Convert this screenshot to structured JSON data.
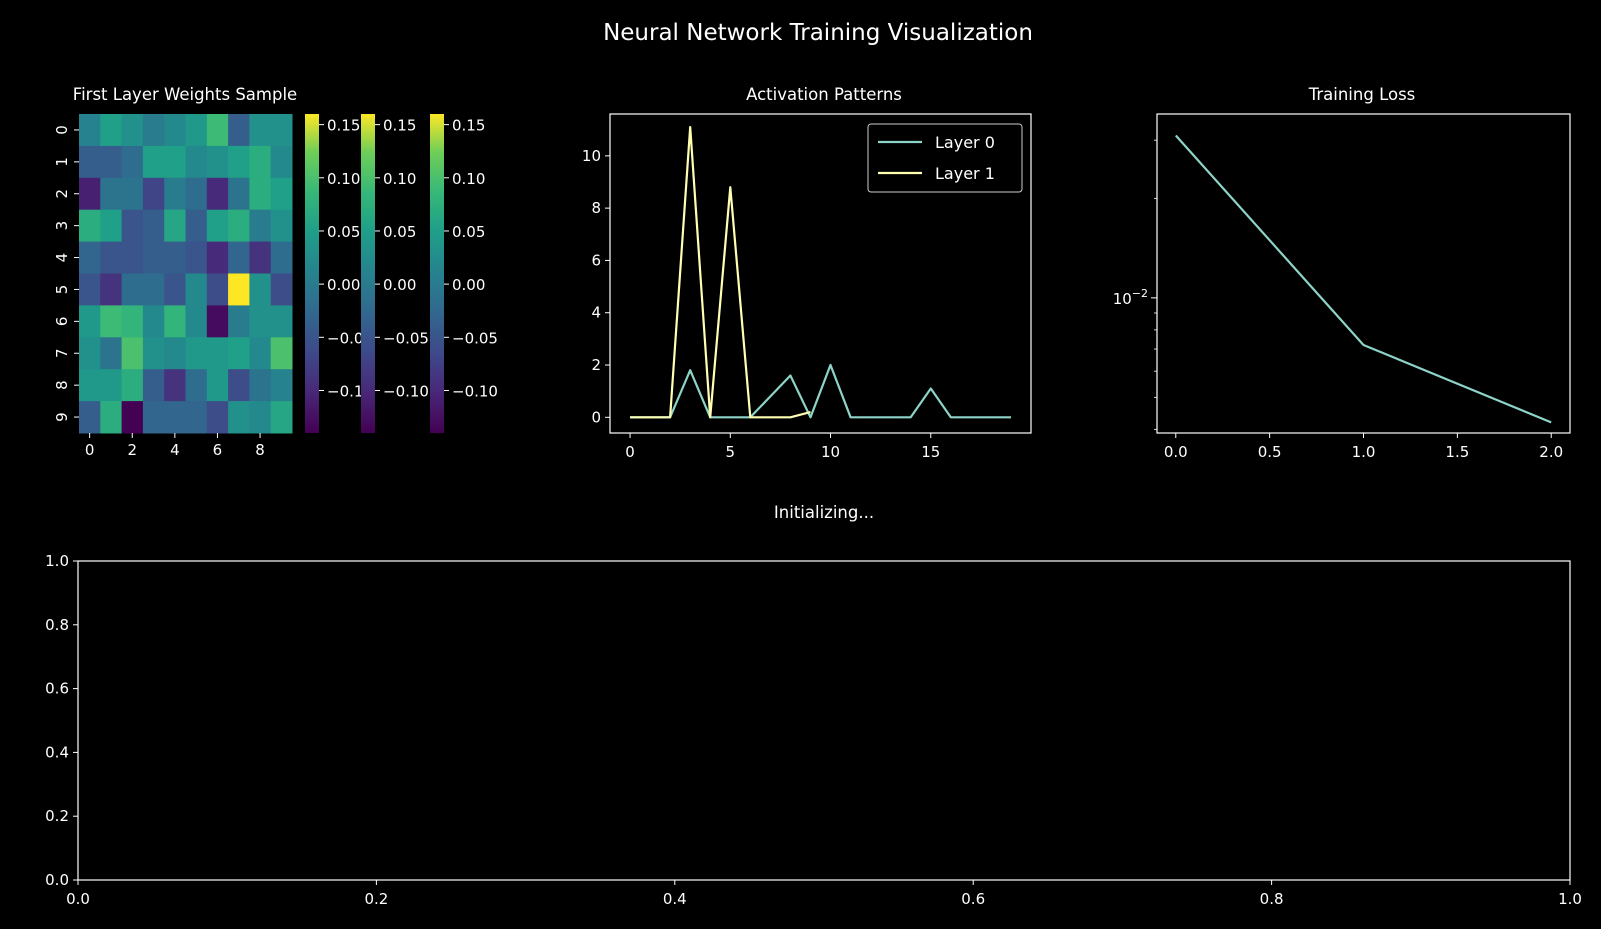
{
  "figure": {
    "title": "Neural Network Training Visualization",
    "status_text": "Initializing..."
  },
  "chart_data": [
    {
      "type": "heatmap",
      "title": "First Layer Weights Sample",
      "rows": 10,
      "cols": 10,
      "x_ticks": [
        "0",
        "2",
        "4",
        "6",
        "8"
      ],
      "y_ticks": [
        "0",
        "1",
        "2",
        "3",
        "4",
        "5",
        "6",
        "7",
        "8",
        "9"
      ],
      "colormap": "viridis",
      "vmin": -0.14,
      "vmax": 0.16,
      "values": [
        [
          0.01,
          0.05,
          0.03,
          0.0,
          0.02,
          0.04,
          0.09,
          -0.04,
          0.03,
          0.03
        ],
        [
          -0.04,
          -0.04,
          -0.02,
          0.05,
          0.05,
          0.02,
          0.03,
          0.05,
          0.07,
          0.02
        ],
        [
          -0.11,
          -0.01,
          -0.01,
          -0.07,
          0.0,
          -0.02,
          -0.1,
          -0.01,
          0.07,
          0.05
        ],
        [
          0.07,
          0.05,
          -0.05,
          -0.04,
          0.06,
          -0.04,
          0.05,
          0.07,
          0.0,
          0.03
        ],
        [
          -0.03,
          -0.05,
          -0.05,
          -0.04,
          -0.04,
          -0.05,
          -0.1,
          -0.03,
          -0.09,
          -0.02
        ],
        [
          -0.05,
          -0.09,
          -0.02,
          -0.02,
          -0.05,
          0.02,
          -0.06,
          0.16,
          0.03,
          -0.06
        ],
        [
          0.04,
          0.09,
          0.08,
          0.02,
          0.08,
          0.02,
          -0.13,
          0.0,
          0.03,
          0.03
        ],
        [
          0.03,
          -0.01,
          0.1,
          0.03,
          0.02,
          0.04,
          0.04,
          0.05,
          0.02,
          0.1
        ],
        [
          0.04,
          0.04,
          0.07,
          -0.04,
          -0.09,
          -0.02,
          0.04,
          -0.06,
          -0.01,
          0.01
        ],
        [
          -0.04,
          0.07,
          -0.14,
          -0.03,
          -0.03,
          -0.03,
          -0.06,
          0.03,
          0.02,
          0.06
        ]
      ],
      "colorbars": [
        {
          "ticks": [
            "0.15",
            "0.10",
            "0.05",
            "0.00",
            "−0.05",
            "−0.10"
          ],
          "tick_values": [
            0.15,
            0.1,
            0.05,
            0.0,
            -0.05,
            -0.1
          ]
        },
        {
          "ticks": [
            "0.15",
            "0.10",
            "0.05",
            "0.00",
            "−0.05",
            "−0.10"
          ],
          "tick_values": [
            0.15,
            0.1,
            0.05,
            0.0,
            -0.05,
            -0.1
          ]
        },
        {
          "ticks": [
            "0.15",
            "0.10",
            "0.05",
            "0.00",
            "−0.05",
            "−0.10"
          ],
          "tick_values": [
            0.15,
            0.1,
            0.05,
            0.0,
            -0.05,
            -0.1
          ]
        }
      ]
    },
    {
      "type": "line",
      "title": "Activation Patterns",
      "xlim": [
        -1,
        20
      ],
      "ylim": [
        -0.6,
        11.6
      ],
      "x_ticks": [
        0,
        5,
        10,
        15
      ],
      "y_ticks": [
        0,
        2,
        4,
        6,
        8,
        10
      ],
      "legend": "top-right",
      "series": [
        {
          "name": "Layer 0",
          "color": "#8dd3c7",
          "x": [
            0,
            1,
            2,
            3,
            4,
            5,
            6,
            7,
            8,
            9,
            10,
            11,
            12,
            13,
            14,
            15,
            16,
            17,
            18,
            19
          ],
          "values": [
            0,
            0,
            0,
            1.8,
            0,
            0,
            0,
            0.8,
            1.6,
            0,
            2.0,
            0,
            0,
            0,
            0,
            1.1,
            0,
            0,
            0,
            0
          ]
        },
        {
          "name": "Layer 1",
          "color": "#feffb3",
          "x": [
            0,
            1,
            2,
            3,
            4,
            5,
            6,
            7,
            8,
            9
          ],
          "values": [
            0,
            0,
            0,
            11.1,
            0,
            8.8,
            0,
            0,
            0,
            0.2
          ]
        }
      ]
    },
    {
      "type": "line",
      "title": "Training Loss",
      "y_scale": "log",
      "xlim": [
        -0.1,
        2.1
      ],
      "ylim": [
        0.0039,
        0.036
      ],
      "x_ticks": [
        "0.0",
        "0.5",
        "1.0",
        "1.5",
        "2.0"
      ],
      "y_major_tick": {
        "value": 0.01,
        "base": "10",
        "exponent": "−2"
      },
      "series": [
        {
          "color": "#8dd3c7",
          "x": [
            0,
            1,
            2
          ],
          "values": [
            0.031,
            0.0072,
            0.0042
          ]
        }
      ]
    },
    {
      "type": "line",
      "title": "",
      "xlim": [
        0,
        1
      ],
      "ylim": [
        0,
        1
      ],
      "x_ticks": [
        "0.0",
        "0.2",
        "0.4",
        "0.6",
        "0.8",
        "1.0"
      ],
      "y_ticks": [
        "0.0",
        "0.2",
        "0.4",
        "0.6",
        "0.8",
        "1.0"
      ],
      "series": []
    }
  ]
}
